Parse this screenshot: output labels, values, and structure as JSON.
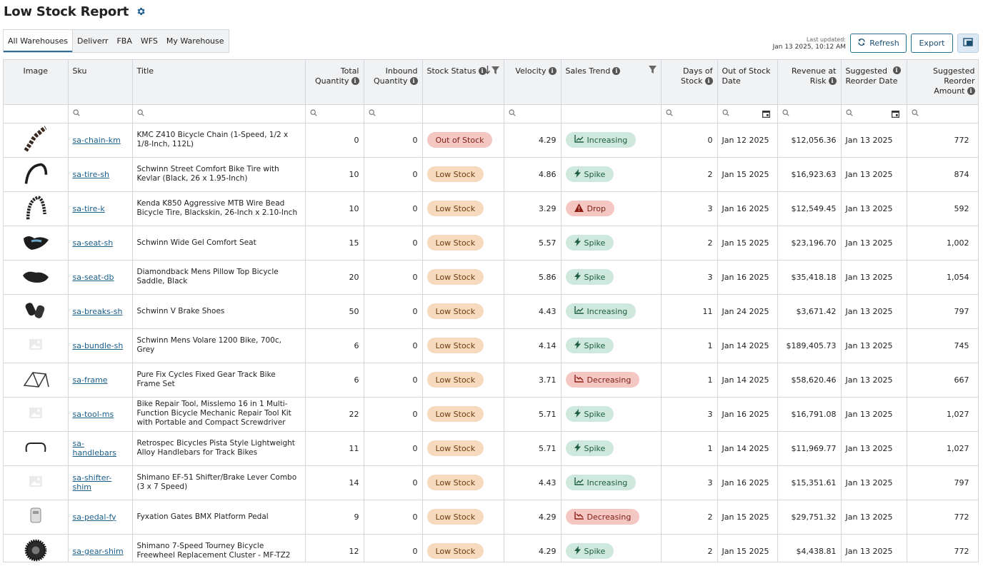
{
  "page_title": "Low Stock Report",
  "icons": {
    "settings": "gear-icon"
  },
  "tabs": [
    {
      "label": "All Warehouses",
      "active": true
    },
    {
      "label": "Deliverr",
      "active": false
    },
    {
      "label": "FBA",
      "active": false
    },
    {
      "label": "WFS",
      "active": false
    },
    {
      "label": "My Warehouse",
      "active": false
    }
  ],
  "last_updated": {
    "label": "Last updated:",
    "value": "Jan 13 2025, 10:12 AM"
  },
  "toolbar": {
    "refresh_label": "Refresh",
    "export_label": "Export"
  },
  "columns": [
    {
      "key": "image",
      "label": "Image"
    },
    {
      "key": "sku",
      "label": "Sku"
    },
    {
      "key": "title",
      "label": "Title"
    },
    {
      "key": "total_qty",
      "label": "Total Quantity"
    },
    {
      "key": "inbound_qty",
      "label": "Inbound Quantity"
    },
    {
      "key": "stock_status",
      "label": "Stock Status"
    },
    {
      "key": "velocity",
      "label": "Velocity"
    },
    {
      "key": "sales_trend",
      "label": "Sales Trend"
    },
    {
      "key": "days_of_stock",
      "label": "Days of Stock"
    },
    {
      "key": "oos_date",
      "label": "Out of Stock Date"
    },
    {
      "key": "revenue_at_risk",
      "label": "Revenue at Risk"
    },
    {
      "key": "reorder_date",
      "label": "Suggested Reorder Date"
    },
    {
      "key": "reorder_amount",
      "label": "Suggested Reorder Amount"
    }
  ],
  "rows": [
    {
      "image": "chain",
      "sku": "sa-chain-km",
      "title": "KMC Z410 Bicycle Chain (1-Speed, 1/2 x 1/8-Inch, 112L)",
      "total_qty": "0",
      "inbound_qty": "0",
      "stock_status": "Out of Stock",
      "velocity": "4.29",
      "sales_trend": "Increasing",
      "days_of_stock": "0",
      "oos_date": "Jan 12 2025",
      "revenue_at_risk": "$12,056.36",
      "reorder_date": "Jan 13 2025",
      "reorder_amount": "772"
    },
    {
      "image": "tire",
      "sku": "sa-tire-sh",
      "title": "Schwinn Street Comfort Bike Tire with Kevlar (Black, 26 x 1.95-Inch)",
      "total_qty": "10",
      "inbound_qty": "0",
      "stock_status": "Low Stock",
      "velocity": "4.86",
      "sales_trend": "Spike",
      "days_of_stock": "2",
      "oos_date": "Jan 15 2025",
      "revenue_at_risk": "$16,923.63",
      "reorder_date": "Jan 13 2025",
      "reorder_amount": "874"
    },
    {
      "image": "tire-k",
      "sku": "sa-tire-k",
      "title": "Kenda K850 Aggressive MTB Wire Bead Bicycle Tire, Blackskin, 26-Inch x 2.10-Inch",
      "total_qty": "10",
      "inbound_qty": "0",
      "stock_status": "Low Stock",
      "velocity": "3.29",
      "sales_trend": "Drop",
      "days_of_stock": "3",
      "oos_date": "Jan 16 2025",
      "revenue_at_risk": "$12,549.45",
      "reorder_date": "Jan 13 2025",
      "reorder_amount": "592"
    },
    {
      "image": "seat",
      "sku": "sa-seat-sh",
      "title": "Schwinn Wide Gel Comfort Seat",
      "total_qty": "15",
      "inbound_qty": "0",
      "stock_status": "Low Stock",
      "velocity": "5.57",
      "sales_trend": "Spike",
      "days_of_stock": "2",
      "oos_date": "Jan 15 2025",
      "revenue_at_risk": "$23,196.70",
      "reorder_date": "Jan 13 2025",
      "reorder_amount": "1,002"
    },
    {
      "image": "saddle",
      "sku": "sa-seat-db",
      "title": "Diamondback Mens Pillow Top Bicycle Saddle, Black",
      "total_qty": "20",
      "inbound_qty": "0",
      "stock_status": "Low Stock",
      "velocity": "5.86",
      "sales_trend": "Spike",
      "days_of_stock": "3",
      "oos_date": "Jan 16 2025",
      "revenue_at_risk": "$35,418.18",
      "reorder_date": "Jan 13 2025",
      "reorder_amount": "1,054"
    },
    {
      "image": "brakes",
      "sku": "sa-breaks-sh",
      "title": "Schwinn V Brake Shoes",
      "total_qty": "50",
      "inbound_qty": "0",
      "stock_status": "Low Stock",
      "velocity": "4.43",
      "sales_trend": "Increasing",
      "days_of_stock": "11",
      "oos_date": "Jan 24 2025",
      "revenue_at_risk": "$3,671.42",
      "reorder_date": "Jan 13 2025",
      "reorder_amount": "797"
    },
    {
      "image": "placeholder",
      "sku": "sa-bundle-sh",
      "title": "Schwinn Mens Volare 1200 Bike, 700c, Grey",
      "total_qty": "6",
      "inbound_qty": "0",
      "stock_status": "Low Stock",
      "velocity": "4.14",
      "sales_trend": "Spike",
      "days_of_stock": "1",
      "oos_date": "Jan 14 2025",
      "revenue_at_risk": "$189,405.73",
      "reorder_date": "Jan 13 2025",
      "reorder_amount": "745"
    },
    {
      "image": "frame",
      "sku": "sa-frame",
      "title": "Pure Fix Cycles Fixed Gear Track Bike Frame Set",
      "total_qty": "6",
      "inbound_qty": "0",
      "stock_status": "Low Stock",
      "velocity": "3.71",
      "sales_trend": "Decreasing",
      "days_of_stock": "1",
      "oos_date": "Jan 14 2025",
      "revenue_at_risk": "$58,620.46",
      "reorder_date": "Jan 13 2025",
      "reorder_amount": "667"
    },
    {
      "image": "placeholder",
      "sku": "sa-tool-ms",
      "title": "Bike Repair Tool, Misslemo 16 in 1 Multi-Function Bicycle Mechanic Repair Tool Kit with Portable and Compact Screwdriver Nut...",
      "total_qty": "22",
      "inbound_qty": "0",
      "stock_status": "Low Stock",
      "velocity": "5.71",
      "sales_trend": "Spike",
      "days_of_stock": "3",
      "oos_date": "Jan 16 2025",
      "revenue_at_risk": "$16,791.08",
      "reorder_date": "Jan 13 2025",
      "reorder_amount": "1,027"
    },
    {
      "image": "handlebar",
      "sku": "sa-handlebars",
      "title": "Retrospec Bicycles Pista Style Lightweight Alloy Handlebars for Track Bikes",
      "total_qty": "11",
      "inbound_qty": "0",
      "stock_status": "Low Stock",
      "velocity": "5.71",
      "sales_trend": "Spike",
      "days_of_stock": "1",
      "oos_date": "Jan 14 2025",
      "revenue_at_risk": "$11,969.77",
      "reorder_date": "Jan 13 2025",
      "reorder_amount": "1,027"
    },
    {
      "image": "placeholder",
      "sku": "sa-shifter-shim",
      "title": "Shimano EF-51 Shifter/Brake Lever Combo (3 x 7 Speed)",
      "total_qty": "14",
      "inbound_qty": "0",
      "stock_status": "Low Stock",
      "velocity": "4.43",
      "sales_trend": "Increasing",
      "days_of_stock": "3",
      "oos_date": "Jan 16 2025",
      "revenue_at_risk": "$15,351.61",
      "reorder_date": "Jan 13 2025",
      "reorder_amount": "797"
    },
    {
      "image": "pedal",
      "sku": "sa-pedal-fy",
      "title": "Fyxation Gates BMX Platform Pedal",
      "total_qty": "9",
      "inbound_qty": "0",
      "stock_status": "Low Stock",
      "velocity": "4.29",
      "sales_trend": "Decreasing",
      "days_of_stock": "2",
      "oos_date": "Jan 15 2025",
      "revenue_at_risk": "$29,751.32",
      "reorder_date": "Jan 13 2025",
      "reorder_amount": "772"
    },
    {
      "image": "gear",
      "sku": "sa-gear-shim",
      "title": "Shimano 7-Speed Tourney Bicycle Freewheel Replacement Cluster - MF-TZ2",
      "total_qty": "12",
      "inbound_qty": "0",
      "stock_status": "Low Stock",
      "velocity": "4.29",
      "sales_trend": "Spike",
      "days_of_stock": "2",
      "oos_date": "Jan 15 2025",
      "revenue_at_risk": "$4,438.81",
      "reorder_date": "Jan 13 2025",
      "reorder_amount": "772"
    }
  ],
  "colors": {
    "accent": "#2a6f97",
    "out_of_stock_bg": "#f4c7c3",
    "low_stock_bg": "#f7d9bd",
    "positive_trend_bg": "#cfe8dd",
    "negative_trend_bg": "#f4c7c3"
  }
}
